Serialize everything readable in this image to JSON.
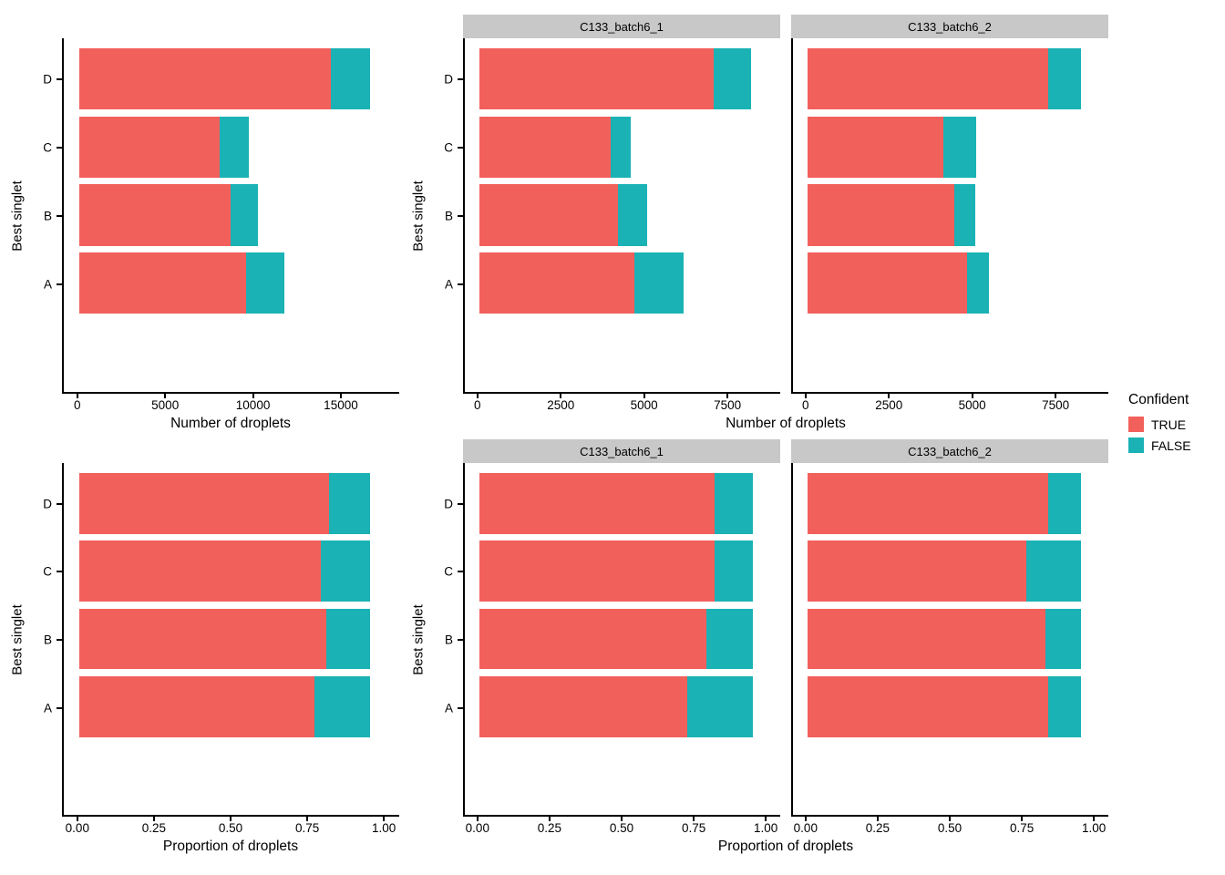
{
  "colors": {
    "true_fill": "#F2605C",
    "false_fill": "#1AB2B5",
    "strip_bg": "#C8C8C8",
    "axis_line": "#000000",
    "text": "#000000"
  },
  "legend": {
    "title": "Confident",
    "position": "right",
    "entries": [
      {
        "label": "TRUE",
        "color": "#F2605C"
      },
      {
        "label": "FALSE",
        "color": "#1AB2B5"
      }
    ]
  },
  "chart_data": [
    {
      "id": "counts-overall",
      "type": "bar",
      "orientation": "horizontal",
      "stacked": true,
      "xlabel": "Number of droplets",
      "ylabel": "Best singlet",
      "categories": [
        "D",
        "C",
        "B",
        "A"
      ],
      "data_max": 17450,
      "xticks": [
        {
          "value": 0,
          "label": "0"
        },
        {
          "value": 5000,
          "label": "5000"
        },
        {
          "value": 10000,
          "label": "10000"
        },
        {
          "value": 15000,
          "label": "15000"
        }
      ],
      "panels": [
        {
          "strip": null,
          "series": [
            {
              "name": "TRUE",
              "values": [
                15100,
                8450,
                9100,
                10000
              ]
            },
            {
              "name": "FALSE",
              "values": [
                2350,
                1750,
                1650,
                2300
              ]
            }
          ]
        }
      ]
    },
    {
      "id": "counts-by-sample",
      "type": "bar",
      "orientation": "horizontal",
      "stacked": true,
      "xlabel": "Number of droplets",
      "ylabel": "Best singlet",
      "categories": [
        "D",
        "C",
        "B",
        "A"
      ],
      "data_max": 8650,
      "xticks": [
        {
          "value": 0,
          "label": "0"
        },
        {
          "value": 2500,
          "label": "2500"
        },
        {
          "value": 5000,
          "label": "5000"
        },
        {
          "value": 7500,
          "label": "7500"
        }
      ],
      "panels": [
        {
          "strip": "C133_batch6_1",
          "series": [
            {
              "name": "TRUE",
              "values": [
                7400,
                4150,
                4400,
                4900
              ]
            },
            {
              "name": "FALSE",
              "values": [
                1200,
                650,
                900,
                1550
              ]
            }
          ]
        },
        {
          "strip": "C133_batch6_2",
          "series": [
            {
              "name": "TRUE",
              "values": [
                7600,
                4300,
                4650,
                5050
              ]
            },
            {
              "name": "FALSE",
              "values": [
                1050,
                1050,
                650,
                700
              ]
            }
          ]
        }
      ]
    },
    {
      "id": "proportions-overall",
      "type": "bar",
      "orientation": "horizontal",
      "stacked": true,
      "xlabel": "Proportion of droplets",
      "ylabel": "Best singlet",
      "categories": [
        "D",
        "C",
        "B",
        "A"
      ],
      "data_max": 1.0,
      "xticks": [
        {
          "value": 0,
          "label": "0.00"
        },
        {
          "value": 0.25,
          "label": "0.25"
        },
        {
          "value": 0.5,
          "label": "0.50"
        },
        {
          "value": 0.75,
          "label": "0.75"
        },
        {
          "value": 1.0,
          "label": "1.00"
        }
      ],
      "panels": [
        {
          "strip": null,
          "series": [
            {
              "name": "TRUE",
              "values": [
                0.86,
                0.83,
                0.85,
                0.81
              ]
            },
            {
              "name": "FALSE",
              "values": [
                0.14,
                0.17,
                0.15,
                0.19
              ]
            }
          ]
        }
      ]
    },
    {
      "id": "proportions-by-sample",
      "type": "bar",
      "orientation": "horizontal",
      "stacked": true,
      "xlabel": "Proportion of droplets",
      "ylabel": "Best singlet",
      "categories": [
        "D",
        "C",
        "B",
        "A"
      ],
      "data_max": 1.0,
      "xticks": [
        {
          "value": 0,
          "label": "0.00"
        },
        {
          "value": 0.25,
          "label": "0.25"
        },
        {
          "value": 0.5,
          "label": "0.50"
        },
        {
          "value": 0.75,
          "label": "0.75"
        },
        {
          "value": 1.0,
          "label": "1.00"
        }
      ],
      "panels": [
        {
          "strip": "C133_batch6_1",
          "series": [
            {
              "name": "TRUE",
              "values": [
                0.86,
                0.86,
                0.83,
                0.76
              ]
            },
            {
              "name": "FALSE",
              "values": [
                0.14,
                0.14,
                0.17,
                0.24
              ]
            }
          ]
        },
        {
          "strip": "C133_batch6_2",
          "series": [
            {
              "name": "TRUE",
              "values": [
                0.88,
                0.8,
                0.87,
                0.88
              ]
            },
            {
              "name": "FALSE",
              "values": [
                0.12,
                0.2,
                0.13,
                0.12
              ]
            }
          ]
        }
      ]
    }
  ]
}
